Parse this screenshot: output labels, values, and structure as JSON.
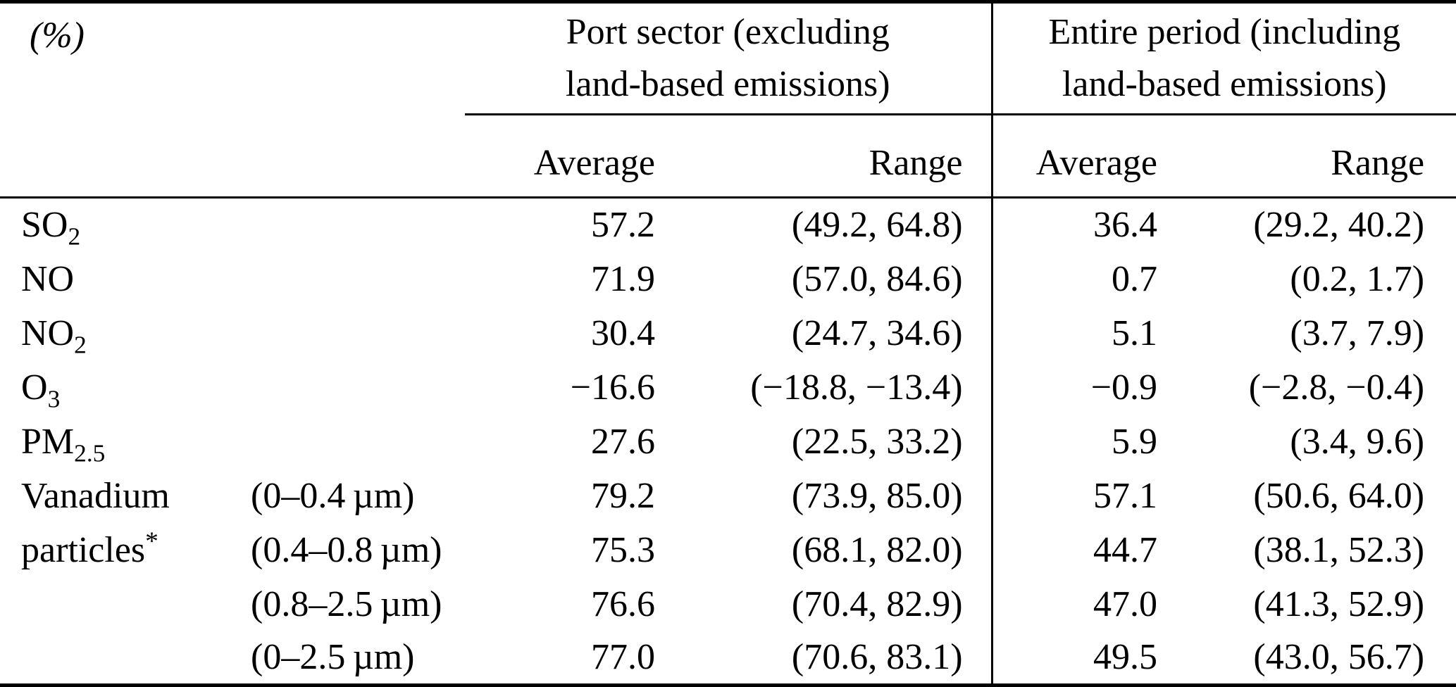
{
  "table": {
    "unit_label": "(%)",
    "groups": [
      {
        "title_line1": "Port sector (excluding",
        "title_line2": "land-based emissions)",
        "columns": [
          "Average",
          "Range"
        ]
      },
      {
        "title_line1": "Entire period (including",
        "title_line2": "land-based emissions)",
        "columns": [
          "Average",
          "Range"
        ]
      }
    ],
    "rows": [
      {
        "species_base": "SO",
        "species_sub": "2",
        "species_sup": "",
        "size": "",
        "port_avg": "57.2",
        "port_range": "(49.2, 64.8)",
        "entire_avg": "36.4",
        "entire_range": "(29.2, 40.2)"
      },
      {
        "species_base": "NO",
        "species_sub": "",
        "species_sup": "",
        "size": "",
        "port_avg": "71.9",
        "port_range": "(57.0, 84.6)",
        "entire_avg": "0.7",
        "entire_range": "(0.2, 1.7)"
      },
      {
        "species_base": "NO",
        "species_sub": "2",
        "species_sup": "",
        "size": "",
        "port_avg": "30.4",
        "port_range": "(24.7, 34.6)",
        "entire_avg": "5.1",
        "entire_range": "(3.7, 7.9)"
      },
      {
        "species_base": "O",
        "species_sub": "3",
        "species_sup": "",
        "size": "",
        "port_avg": "−16.6",
        "port_range": "(−18.8, −13.4)",
        "entire_avg": "−0.9",
        "entire_range": "(−2.8, −0.4)"
      },
      {
        "species_base": "PM",
        "species_sub": "2.5",
        "species_sup": "",
        "size": "",
        "port_avg": "27.6",
        "port_range": "(22.5, 33.2)",
        "entire_avg": "5.9",
        "entire_range": "(3.4, 9.6)"
      },
      {
        "species_base": "Vanadium",
        "species_sub": "",
        "species_sup": "",
        "size": "(0–0.4 µm)",
        "port_avg": "79.2",
        "port_range": "(73.9, 85.0)",
        "entire_avg": "57.1",
        "entire_range": "(50.6, 64.0)"
      },
      {
        "species_base": "particles",
        "species_sub": "",
        "species_sup": "*",
        "size": "(0.4–0.8 µm)",
        "port_avg": "75.3",
        "port_range": "(68.1, 82.0)",
        "entire_avg": "44.7",
        "entire_range": "(38.1, 52.3)"
      },
      {
        "species_base": "",
        "species_sub": "",
        "species_sup": "",
        "size": "(0.8–2.5 µm)",
        "port_avg": "76.6",
        "port_range": "(70.4, 82.9)",
        "entire_avg": "47.0",
        "entire_range": "(41.3, 52.9)"
      },
      {
        "species_base": "",
        "species_sub": "",
        "species_sup": "",
        "size": "(0–2.5 µm)",
        "port_avg": "77.0",
        "port_range": "(70.6, 83.1)",
        "entire_avg": "49.5",
        "entire_range": "(43.0, 56.7)"
      }
    ]
  }
}
